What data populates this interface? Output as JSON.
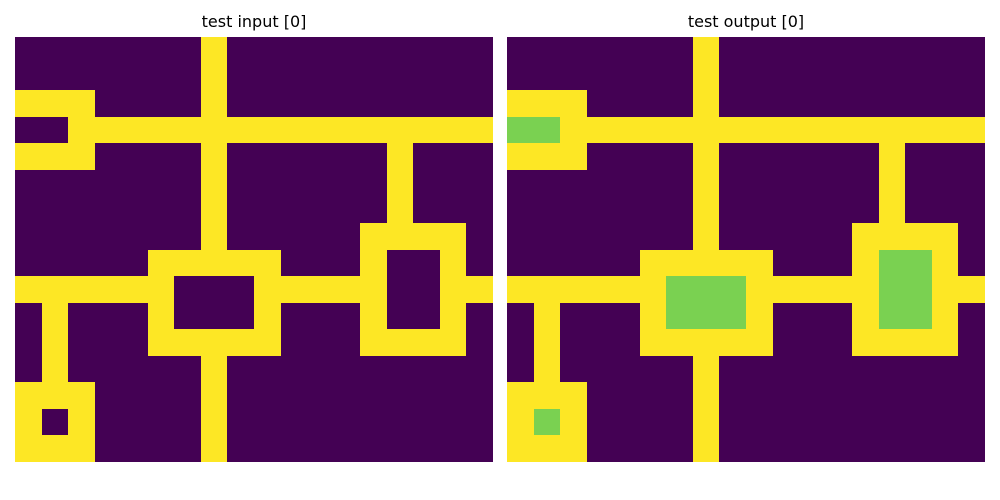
{
  "palette": {
    "0": "#440154",
    "1": "#fde725",
    "2": "#7ad151"
  },
  "panels": [
    {
      "title": "test input [0]",
      "grid": [
        [
          0,
          0,
          0,
          0,
          0,
          0,
          0,
          1,
          0,
          0,
          0,
          0,
          0,
          0,
          0,
          0,
          0,
          0
        ],
        [
          0,
          0,
          0,
          0,
          0,
          0,
          0,
          1,
          0,
          0,
          0,
          0,
          0,
          0,
          0,
          0,
          0,
          0
        ],
        [
          1,
          1,
          1,
          0,
          0,
          0,
          0,
          1,
          0,
          0,
          0,
          0,
          0,
          0,
          0,
          0,
          0,
          0
        ],
        [
          0,
          0,
          1,
          1,
          1,
          1,
          1,
          1,
          1,
          1,
          1,
          1,
          1,
          1,
          1,
          1,
          1,
          1
        ],
        [
          1,
          1,
          1,
          0,
          0,
          0,
          0,
          1,
          0,
          0,
          0,
          0,
          0,
          0,
          1,
          0,
          0,
          0
        ],
        [
          0,
          0,
          0,
          0,
          0,
          0,
          0,
          1,
          0,
          0,
          0,
          0,
          0,
          0,
          1,
          0,
          0,
          0
        ],
        [
          0,
          0,
          0,
          0,
          0,
          0,
          0,
          1,
          0,
          0,
          0,
          0,
          0,
          0,
          1,
          0,
          0,
          0
        ],
        [
          0,
          0,
          0,
          0,
          0,
          0,
          0,
          1,
          0,
          0,
          0,
          0,
          0,
          1,
          1,
          1,
          1,
          0
        ],
        [
          0,
          0,
          0,
          0,
          0,
          1,
          1,
          1,
          1,
          1,
          0,
          0,
          0,
          1,
          0,
          0,
          1,
          0
        ],
        [
          1,
          1,
          1,
          1,
          1,
          1,
          0,
          0,
          0,
          1,
          1,
          1,
          1,
          1,
          0,
          0,
          1,
          1
        ],
        [
          0,
          1,
          0,
          0,
          0,
          1,
          0,
          0,
          0,
          1,
          0,
          0,
          0,
          1,
          0,
          0,
          1,
          0
        ],
        [
          0,
          1,
          0,
          0,
          0,
          1,
          1,
          1,
          1,
          1,
          0,
          0,
          0,
          1,
          1,
          1,
          1,
          0
        ],
        [
          0,
          1,
          0,
          0,
          0,
          0,
          0,
          1,
          0,
          0,
          0,
          0,
          0,
          0,
          0,
          0,
          0,
          0
        ],
        [
          1,
          1,
          1,
          0,
          0,
          0,
          0,
          1,
          0,
          0,
          0,
          0,
          0,
          0,
          0,
          0,
          0,
          0
        ],
        [
          1,
          0,
          1,
          0,
          0,
          0,
          0,
          1,
          0,
          0,
          0,
          0,
          0,
          0,
          0,
          0,
          0,
          0
        ],
        [
          1,
          1,
          1,
          0,
          0,
          0,
          0,
          1,
          0,
          0,
          0,
          0,
          0,
          0,
          0,
          0,
          0,
          0
        ]
      ]
    },
    {
      "title": "test output [0]",
      "grid": [
        [
          0,
          0,
          0,
          0,
          0,
          0,
          0,
          1,
          0,
          0,
          0,
          0,
          0,
          0,
          0,
          0,
          0,
          0
        ],
        [
          0,
          0,
          0,
          0,
          0,
          0,
          0,
          1,
          0,
          0,
          0,
          0,
          0,
          0,
          0,
          0,
          0,
          0
        ],
        [
          1,
          1,
          1,
          0,
          0,
          0,
          0,
          1,
          0,
          0,
          0,
          0,
          0,
          0,
          0,
          0,
          0,
          0
        ],
        [
          2,
          2,
          1,
          1,
          1,
          1,
          1,
          1,
          1,
          1,
          1,
          1,
          1,
          1,
          1,
          1,
          1,
          1
        ],
        [
          1,
          1,
          1,
          0,
          0,
          0,
          0,
          1,
          0,
          0,
          0,
          0,
          0,
          0,
          1,
          0,
          0,
          0
        ],
        [
          0,
          0,
          0,
          0,
          0,
          0,
          0,
          1,
          0,
          0,
          0,
          0,
          0,
          0,
          1,
          0,
          0,
          0
        ],
        [
          0,
          0,
          0,
          0,
          0,
          0,
          0,
          1,
          0,
          0,
          0,
          0,
          0,
          0,
          1,
          0,
          0,
          0
        ],
        [
          0,
          0,
          0,
          0,
          0,
          0,
          0,
          1,
          0,
          0,
          0,
          0,
          0,
          1,
          1,
          1,
          1,
          0
        ],
        [
          0,
          0,
          0,
          0,
          0,
          1,
          1,
          1,
          1,
          1,
          0,
          0,
          0,
          1,
          2,
          2,
          1,
          0
        ],
        [
          1,
          1,
          1,
          1,
          1,
          1,
          2,
          2,
          2,
          1,
          1,
          1,
          1,
          1,
          2,
          2,
          1,
          1
        ],
        [
          0,
          1,
          0,
          0,
          0,
          1,
          2,
          2,
          2,
          1,
          0,
          0,
          0,
          1,
          2,
          2,
          1,
          0
        ],
        [
          0,
          1,
          0,
          0,
          0,
          1,
          1,
          1,
          1,
          1,
          0,
          0,
          0,
          1,
          1,
          1,
          1,
          0
        ],
        [
          0,
          1,
          0,
          0,
          0,
          0,
          0,
          1,
          0,
          0,
          0,
          0,
          0,
          0,
          0,
          0,
          0,
          0
        ],
        [
          1,
          1,
          1,
          0,
          0,
          0,
          0,
          1,
          0,
          0,
          0,
          0,
          0,
          0,
          0,
          0,
          0,
          0
        ],
        [
          1,
          2,
          1,
          0,
          0,
          0,
          0,
          1,
          0,
          0,
          0,
          0,
          0,
          0,
          0,
          0,
          0,
          0
        ],
        [
          1,
          1,
          1,
          0,
          0,
          0,
          0,
          1,
          0,
          0,
          0,
          0,
          0,
          0,
          0,
          0,
          0,
          0
        ]
      ]
    }
  ]
}
